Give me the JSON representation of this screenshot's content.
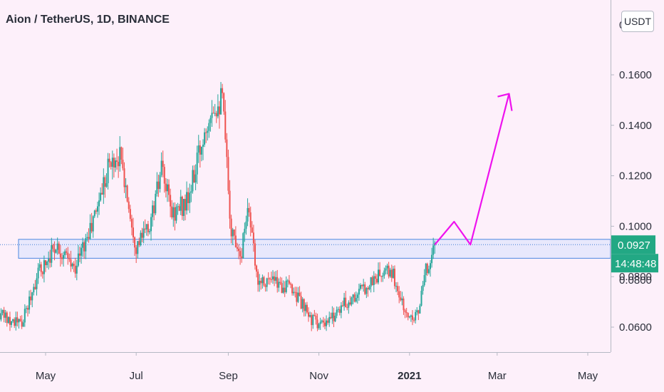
{
  "header": {
    "title": "Aion / TetherUS, 1D, BINANCE",
    "currency_button": "USDT"
  },
  "price_axis": {
    "current_price_label": "0.0927",
    "countdown_label": "14:48:48",
    "current_price_color": "#22a884",
    "countdown_color": "#22a884",
    "partial_top_label": "0.",
    "partial_hidden_label": "0.0800"
  },
  "colors": {
    "background": "#fdf0fa",
    "up_candle": "#26a69a",
    "down_candle": "#ef5350",
    "zone_fill": "#e4e6fb",
    "zone_border": "#4b88e0",
    "projection": "#ee12ee",
    "axis_text": "#2a2e39"
  },
  "chart_data": {
    "type": "candlestick",
    "title": "Aion / TetherUS, 1D, BINANCE",
    "symbol": "Aion / TetherUS",
    "interval": "1D",
    "exchange": "BINANCE",
    "currency": "USDT",
    "xlim": [
      "2020-03-20",
      "2021-05-31"
    ],
    "ylim": [
      0.0492,
      0.1922
    ],
    "y_ticks": [
      0.06,
      0.08,
      0.1,
      0.12,
      0.14,
      0.16
    ],
    "y_tick_labels": [
      "0.0600",
      "0.0800",
      "0.1000",
      "0.1200",
      "0.1400",
      "0.1600"
    ],
    "x_ticks": [
      {
        "date": "2020-05-01",
        "label": "May",
        "bold": false
      },
      {
        "date": "2020-07-01",
        "label": "Jul",
        "bold": false
      },
      {
        "date": "2020-09-01",
        "label": "Sep",
        "bold": false
      },
      {
        "date": "2020-11-01",
        "label": "Nov",
        "bold": false
      },
      {
        "date": "2021-01-01",
        "label": "2021",
        "bold": true
      },
      {
        "date": "2021-03-01",
        "label": "Mar",
        "bold": false
      },
      {
        "date": "2021-05-01",
        "label": "May",
        "bold": false
      }
    ],
    "price_path": [
      {
        "date": "2020-03-20",
        "close": 0.066
      },
      {
        "date": "2020-04-05",
        "close": 0.064
      },
      {
        "date": "2020-04-15",
        "close": 0.061
      },
      {
        "date": "2020-04-25",
        "close": 0.08
      },
      {
        "date": "2020-05-08",
        "close": 0.093
      },
      {
        "date": "2020-05-20",
        "close": 0.083
      },
      {
        "date": "2020-06-01",
        "close": 0.1
      },
      {
        "date": "2020-06-12",
        "close": 0.124
      },
      {
        "date": "2020-06-20",
        "close": 0.128
      },
      {
        "date": "2020-07-01",
        "close": 0.092
      },
      {
        "date": "2020-07-10",
        "close": 0.1
      },
      {
        "date": "2020-07-18",
        "close": 0.122
      },
      {
        "date": "2020-07-25",
        "close": 0.105
      },
      {
        "date": "2020-08-05",
        "close": 0.11
      },
      {
        "date": "2020-08-20",
        "close": 0.148
      },
      {
        "date": "2020-08-28",
        "close": 0.15
      },
      {
        "date": "2020-09-03",
        "close": 0.098
      },
      {
        "date": "2020-09-10",
        "close": 0.09
      },
      {
        "date": "2020-09-14",
        "close": 0.11
      },
      {
        "date": "2020-09-20",
        "close": 0.08
      },
      {
        "date": "2020-10-05",
        "close": 0.077
      },
      {
        "date": "2020-10-15",
        "close": 0.075
      },
      {
        "date": "2020-10-25",
        "close": 0.064
      },
      {
        "date": "2020-11-05",
        "close": 0.06
      },
      {
        "date": "2020-11-15",
        "close": 0.068
      },
      {
        "date": "2020-11-25",
        "close": 0.072
      },
      {
        "date": "2020-12-10",
        "close": 0.08
      },
      {
        "date": "2020-12-20",
        "close": 0.082
      },
      {
        "date": "2020-12-30",
        "close": 0.064
      },
      {
        "date": "2021-01-07",
        "close": 0.066
      },
      {
        "date": "2021-01-12",
        "close": 0.082
      },
      {
        "date": "2021-01-18",
        "close": 0.0927
      }
    ],
    "support_zone": {
      "start": "2020-03-28",
      "end": "2021-05-31",
      "low": 0.0873,
      "high": 0.0948
    },
    "current_price": 0.0927,
    "projection_path": [
      {
        "date": "2021-01-18",
        "price": 0.0927
      },
      {
        "date": "2021-01-31",
        "price": 0.1018
      },
      {
        "date": "2021-02-11",
        "price": 0.0927
      },
      {
        "date": "2021-03-09",
        "price": 0.1525
      }
    ]
  }
}
